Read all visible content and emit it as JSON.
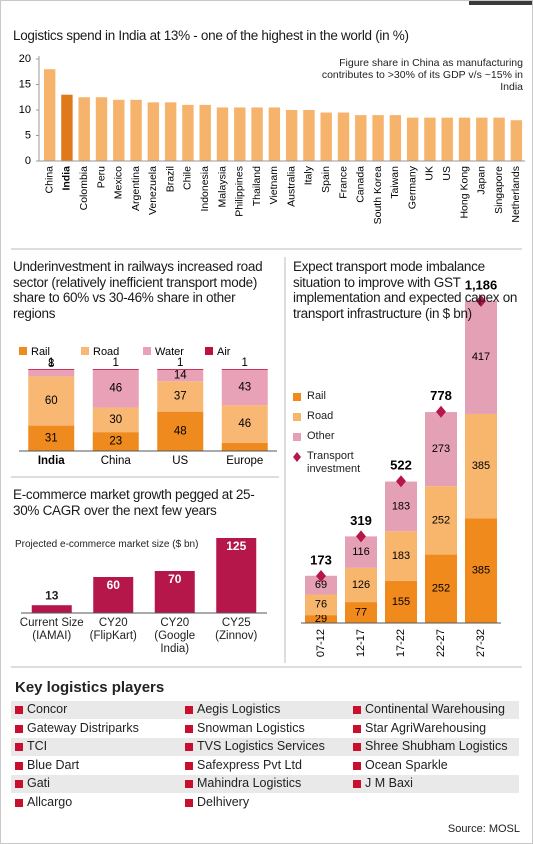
{
  "chart_data": [
    {
      "type": "bar",
      "title": "Logistics spend in India at 13% - one of the highest in the world (in %)",
      "annotation": "Figure share in China as manufacturing contributes to >30% of its GDP v/s ~15% in India",
      "categories": [
        "China",
        "India",
        "Colombia",
        "Peru",
        "Mexico",
        "Argentina",
        "Venezuela",
        "Brazil",
        "Chile",
        "Indonesia",
        "Malaysia",
        "Philippines",
        "Thailand",
        "Vietnam",
        "Australia",
        "Italy",
        "Spain",
        "France",
        "Canada",
        "South Korea",
        "Taiwan",
        "Germany",
        "UK",
        "US",
        "Hong Kong",
        "Japan",
        "Singapore",
        "Netherlands"
      ],
      "values": [
        18,
        13,
        12.5,
        12.5,
        12,
        12,
        11.5,
        11.5,
        11,
        11,
        10.5,
        10.5,
        10.5,
        10.5,
        10,
        10,
        9.5,
        9.5,
        9,
        9,
        9,
        8.5,
        8.5,
        8.5,
        8.5,
        8.5,
        8.5,
        8
      ],
      "colors": [
        "#f6b36b",
        "#e0791b",
        "#f6b36b",
        "#f6b36b",
        "#f6b36b",
        "#f6b36b",
        "#f6b36b",
        "#f6b36b",
        "#f6b36b",
        "#f6b36b",
        "#f6b36b",
        "#f6b36b",
        "#f6b36b",
        "#f6b36b",
        "#f6b36b",
        "#f6b36b",
        "#f6b36b",
        "#f6b36b",
        "#f6b36b",
        "#f6b36b",
        "#f6b36b",
        "#f6b36b",
        "#f6b36b",
        "#f6b36b",
        "#f6b36b",
        "#f6b36b",
        "#f6b36b",
        "#f6b36b"
      ],
      "ylim": [
        0,
        20
      ],
      "yticks": [
        0,
        5,
        10,
        15,
        20
      ],
      "grid": false
    },
    {
      "type": "stacked_bar",
      "title": "Underinvestment in railways increased road sector (relatively inefficient transport mode) share to 60% vs 30-46% share in other regions",
      "categories": [
        "India",
        "China",
        "US",
        "Europe"
      ],
      "series": [
        {
          "name": "Rail",
          "color": "#ee8a1e",
          "values": [
            31,
            23,
            48,
            10
          ]
        },
        {
          "name": "Road",
          "color": "#f8b874",
          "values": [
            60,
            30,
            37,
            46
          ]
        },
        {
          "name": "Water",
          "color": "#e8a1b6",
          "values": [
            8,
            46,
            14,
            43
          ]
        },
        {
          "name": "Air",
          "color": "#c0103d",
          "values": [
            1,
            1,
            1,
            1
          ]
        }
      ]
    },
    {
      "type": "bar",
      "title": "E-commerce market growth pegged at 25-30% CAGR over the next few years",
      "subtitle": "Projected e-commerce market size ($ bn)",
      "categories": [
        "Current Size (IAMAI)",
        "CY20 (FlipKart)",
        "CY20 (Google India)",
        "CY25 (Zinnov)"
      ],
      "values": [
        13,
        60,
        70,
        125
      ],
      "color": "#b5174a"
    },
    {
      "type": "stacked_bar",
      "title": "Expect transport mode imbalance situation to improve with GST implementation and expected capex on transport infrastructure (in $ bn)",
      "categories": [
        "07-12",
        "12-17",
        "17-22",
        "22-27",
        "27-32"
      ],
      "series": [
        {
          "name": "Rail",
          "color": "#f08a1d",
          "values": [
            29,
            77,
            155,
            252,
            385
          ]
        },
        {
          "name": "Road",
          "color": "#f8b66d",
          "values": [
            76,
            126,
            183,
            252,
            385
          ]
        },
        {
          "name": "Other",
          "color": "#e4a1b6",
          "values": [
            69,
            116,
            183,
            273,
            417
          ]
        },
        {
          "name": "Transport investment",
          "color": "#b5174a",
          "marker": "diamond",
          "values": [
            173,
            319,
            522,
            778,
            1186
          ],
          "value_labels": [
            "173",
            "319",
            "522",
            "778",
            "1,186"
          ]
        }
      ]
    }
  ],
  "key_players": {
    "title": "Key logistics players",
    "items": [
      "Concor",
      "Aegis Logistics",
      "Continental Warehousing",
      "Gateway Distriparks",
      "Snowman Logistics",
      "Star AgriWarehousing",
      "TCI",
      "TVS Logistics Services",
      "Shree Shubham Logistics",
      "Blue Dart",
      "Safexpress Pvt Ltd",
      "Ocean Sparkle",
      "Gati",
      "Mahindra Logistics",
      "J M Baxi",
      "Allcargo",
      "Delhivery"
    ]
  },
  "source": "Source: MOSL"
}
